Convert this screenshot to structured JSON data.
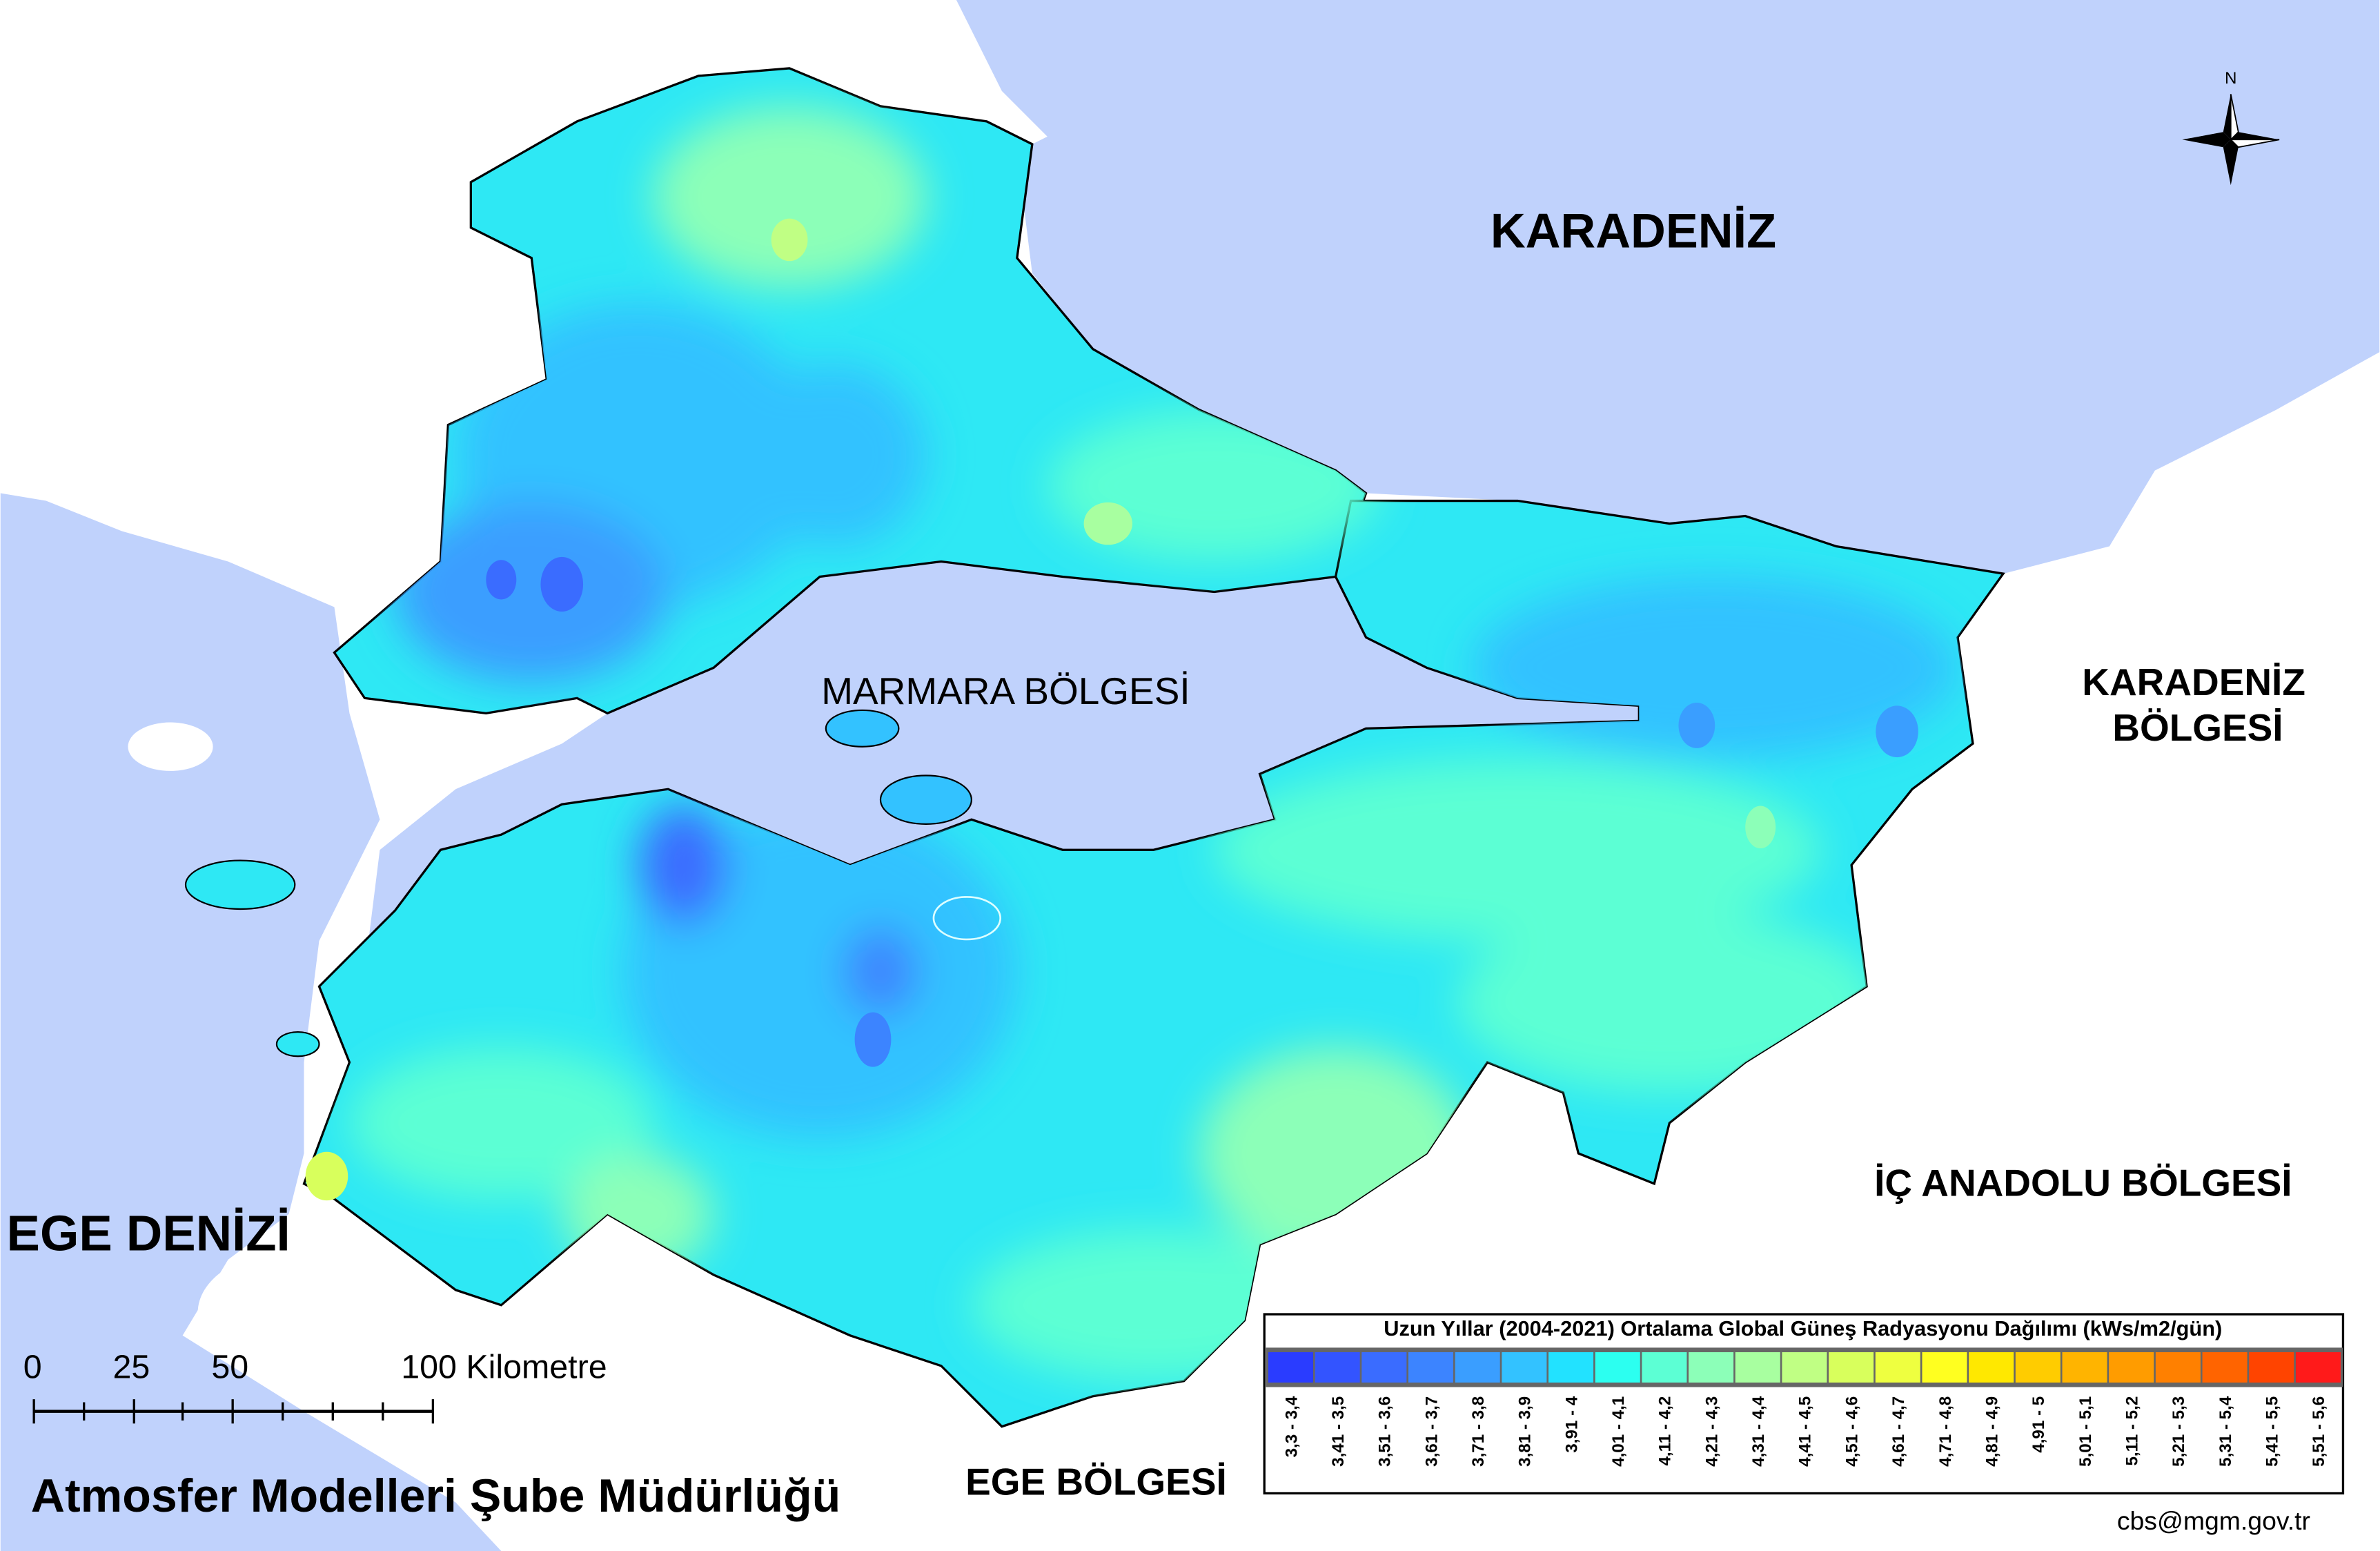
{
  "labels": {
    "black_sea": "KARADENİZ",
    "marmara_region": "MARMARA BÖLGESİ",
    "black_sea_region_line1": "KARADENİZ",
    "black_sea_region_line2": "BÖLGESİ",
    "aegean_sea": "EGE DENİZİ",
    "central_anatolia_region": "İÇ ANADOLU BÖLGESİ",
    "aegean_region": "EGE BÖLGESİ",
    "agency": "Atmosfer Modelleri Şube Müdürlüğü",
    "email": "cbs@mgm.gov.tr",
    "north": "N"
  },
  "scale_bar": {
    "ticks": [
      "0",
      "25",
      "50",
      "100 Kilometre"
    ]
  },
  "legend": {
    "title": "Uzun Yıllar (2004-2021) Ortalama Global Güneş Radyasyonu Dağılımı (kWs/m2/gün)",
    "classes": [
      {
        "label": "3,3 - 3,4",
        "color": "#2a3cff"
      },
      {
        "label": "3,41 - 3,5",
        "color": "#3354ff"
      },
      {
        "label": "3,51 - 3,6",
        "color": "#3a6cff"
      },
      {
        "label": "3,61 - 3,7",
        "color": "#3c84ff"
      },
      {
        "label": "3,71 - 3,8",
        "color": "#3a9eff"
      },
      {
        "label": "3,81 - 3,9",
        "color": "#33c2ff"
      },
      {
        "label": "3,91 - 4",
        "color": "#22e2ff"
      },
      {
        "label": "4,01 - 4,1",
        "color": "#2cfff0"
      },
      {
        "label": "4,11 - 4,2",
        "color": "#5cffd4"
      },
      {
        "label": "4,21 - 4,3",
        "color": "#8cffb8"
      },
      {
        "label": "4,31 - 4,4",
        "color": "#a8ffa0"
      },
      {
        "label": "4,41 - 4,5",
        "color": "#c0ff84"
      },
      {
        "label": "4,51 - 4,6",
        "color": "#d8ff5c"
      },
      {
        "label": "4,61 - 4,7",
        "color": "#eeff40"
      },
      {
        "label": "4,71 - 4,8",
        "color": "#ffff20"
      },
      {
        "label": "4,81 - 4,9",
        "color": "#ffe800"
      },
      {
        "label": "4,91 - 5",
        "color": "#ffcc00"
      },
      {
        "label": "5,01 - 5,1",
        "color": "#ffb400"
      },
      {
        "label": "5,11 - 5,2",
        "color": "#ff9c00"
      },
      {
        "label": "5,21 - 5,3",
        "color": "#ff8000"
      },
      {
        "label": "5,31 - 5,4",
        "color": "#ff6400"
      },
      {
        "label": "5,41 - 5,5",
        "color": "#ff4400"
      },
      {
        "label": "5,51 - 5,6",
        "color": "#ff1a1a"
      }
    ]
  },
  "colors": {
    "sea": "#c0d2fc",
    "land_outside": "#ffffff"
  }
}
